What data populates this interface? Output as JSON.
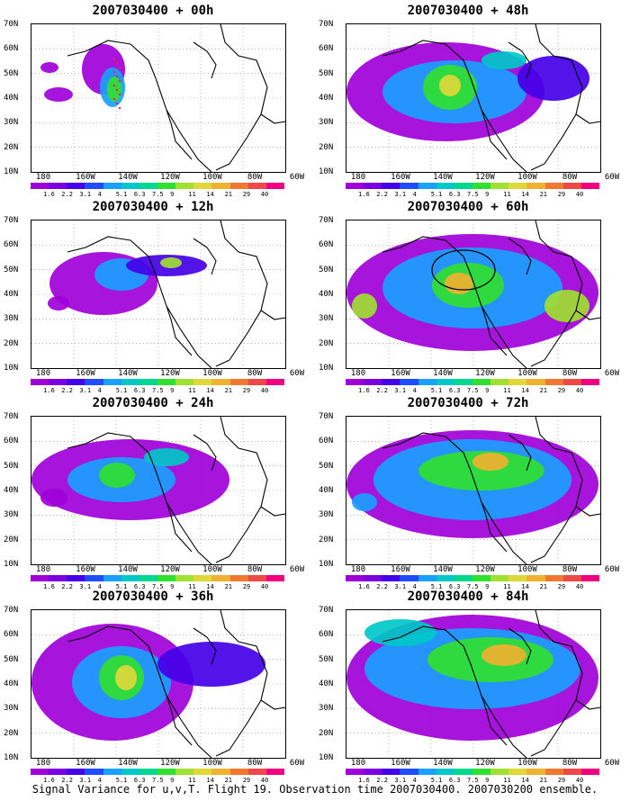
{
  "caption": "Signal Variance for u,v,T. Flight 19. Observation time 2007030400. 2007030200 ensemble.",
  "lat_labels": [
    "70N",
    "60N",
    "50N",
    "40N",
    "30N",
    "20N",
    "10N"
  ],
  "lon_labels": [
    "180",
    "160W",
    "140W",
    "120W",
    "100W",
    "80W",
    "60W"
  ],
  "colorbar": {
    "labels": [
      "1.6",
      "2.2",
      "3.1",
      "4",
      "5.1",
      "6.3",
      "7.5",
      "9",
      "11",
      "14",
      "21",
      "29",
      "40"
    ],
    "colors": [
      "#a000d8",
      "#7a00e0",
      "#4400e8",
      "#1f4cff",
      "#1aa0ff",
      "#00c8c8",
      "#00d890",
      "#30e030",
      "#a0e030",
      "#e0d838",
      "#f0b030",
      "#f07830",
      "#f04848",
      "#f00080"
    ]
  },
  "colors": {
    "water": "#ffffff",
    "coast": "#000000",
    "contour_low": "#a000d8",
    "contour_mid": "#1aa0ff",
    "contour_high": "#e0d838"
  },
  "panels": [
    {
      "id": "p00",
      "title": "2007030400 + 00h"
    },
    {
      "id": "p48",
      "title": "2007030400 + 48h"
    },
    {
      "id": "p12",
      "title": "2007030400 + 12h"
    },
    {
      "id": "p60",
      "title": "2007030400 + 60h"
    },
    {
      "id": "p24",
      "title": "2007030400 + 24h"
    },
    {
      "id": "p72",
      "title": "2007030400 + 72h"
    },
    {
      "id": "p36",
      "title": "2007030400 + 36h"
    },
    {
      "id": "p84",
      "title": "2007030400 + 84h"
    }
  ]
}
